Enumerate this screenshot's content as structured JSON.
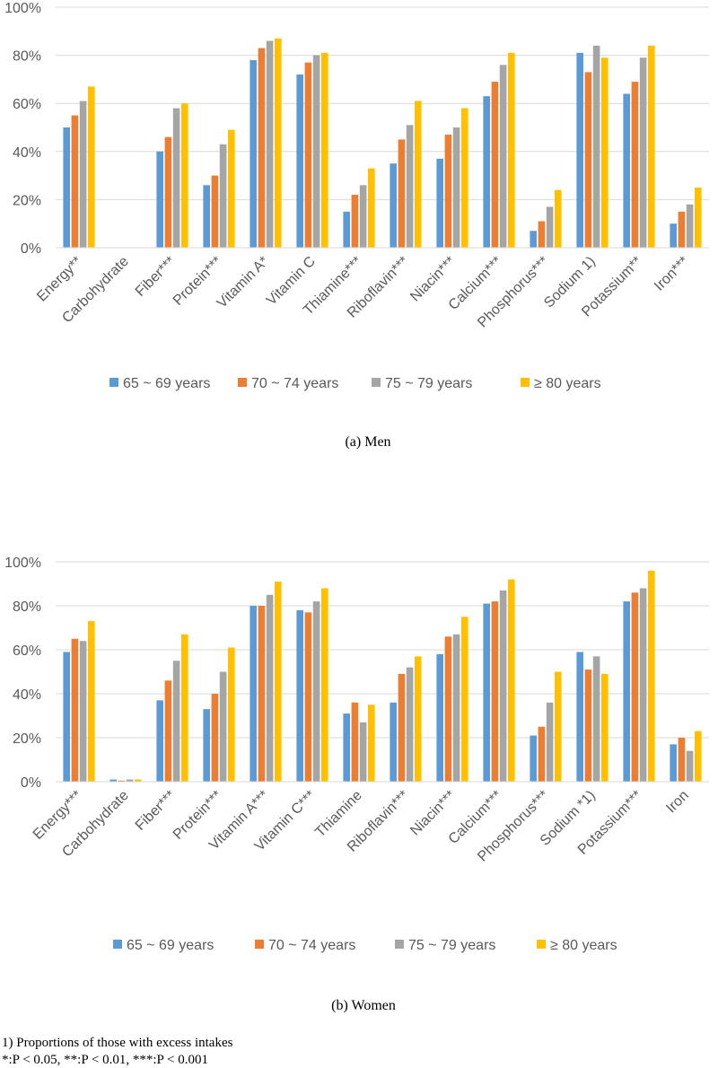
{
  "chart_data": [
    {
      "type": "bar",
      "caption": "(a)   Men",
      "categories": [
        "Energy**",
        "Carbohydrate",
        "Fiber***",
        "Protein***",
        "Vitamin A*",
        "Vitamin C",
        "Thiamine***",
        "Riboflavin***",
        "Niacin***",
        "Calcium***",
        "Phosphorus***",
        "Sodium 1)",
        "Potassium**",
        "Iron***"
      ],
      "yticks": [
        "0%",
        "20%",
        "40%",
        "60%",
        "80%",
        "100%"
      ],
      "ylim": [
        0,
        100
      ],
      "series": [
        {
          "name": "65 ~ 69 years",
          "color": "#5b9bd5",
          "values": [
            50,
            0,
            40,
            26,
            78,
            72,
            15,
            35,
            37,
            63,
            7,
            81,
            64,
            10
          ]
        },
        {
          "name": "70 ~ 74 years",
          "color": "#ed7d31",
          "values": [
            55,
            0,
            46,
            30,
            83,
            77,
            22,
            45,
            47,
            69,
            11,
            73,
            69,
            15
          ]
        },
        {
          "name": "75 ~ 79 years",
          "color": "#a5a5a5",
          "values": [
            61,
            0,
            58,
            43,
            86,
            80,
            26,
            51,
            50,
            76,
            17,
            84,
            79,
            18
          ]
        },
        {
          "name": "≥ 80 years",
          "color": "#ffc000",
          "values": [
            67,
            0,
            60,
            49,
            87,
            81,
            33,
            61,
            58,
            81,
            24,
            79,
            84,
            25
          ]
        }
      ]
    },
    {
      "type": "bar",
      "caption": "(b)   Women",
      "categories": [
        "Energy***",
        "Carbohydrate",
        "Fiber***",
        "Protein***",
        "Vitamin A***",
        "Vitamin C***",
        "Thiamine",
        "Riboflavin***",
        "Niacin***",
        "Calcium***",
        "Phosphorus***",
        "Sodium *1)",
        "Potassium***",
        "Iron"
      ],
      "yticks": [
        "0%",
        "20%",
        "40%",
        "60%",
        "80%",
        "100%"
      ],
      "ylim": [
        0,
        100
      ],
      "series": [
        {
          "name": "65 ~ 69 years",
          "color": "#5b9bd5",
          "values": [
            59,
            1,
            37,
            33,
            80,
            78,
            31,
            36,
            58,
            81,
            21,
            59,
            82,
            17
          ]
        },
        {
          "name": "70 ~ 74 years",
          "color": "#ed7d31",
          "values": [
            65,
            0.5,
            46,
            40,
            80,
            77,
            36,
            49,
            66,
            82,
            25,
            51,
            86,
            20
          ]
        },
        {
          "name": "75 ~ 79 years",
          "color": "#a5a5a5",
          "values": [
            64,
            1,
            55,
            50,
            85,
            82,
            27,
            52,
            67,
            87,
            36,
            57,
            88,
            14
          ]
        },
        {
          "name": "≥ 80 years",
          "color": "#ffc000",
          "values": [
            73,
            1,
            67,
            61,
            91,
            88,
            35,
            57,
            75,
            92,
            50,
            49,
            96,
            23
          ]
        }
      ]
    }
  ],
  "footnotes": {
    "line1": "1) Proportions of those with excess intakes",
    "line2": "*:P < 0.05, **:P < 0.01, ***:P < 0.001"
  }
}
